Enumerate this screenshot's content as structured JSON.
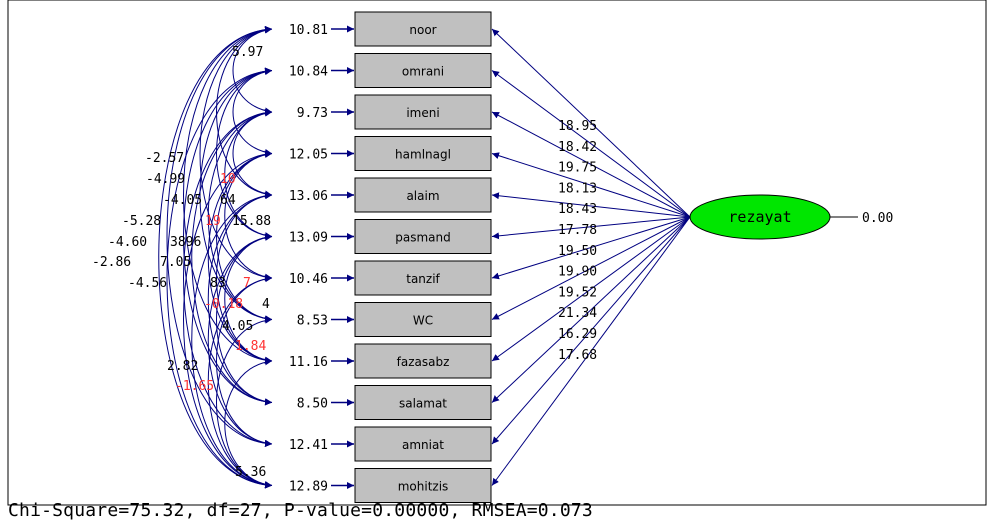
{
  "latent": {
    "name": "rezayat",
    "error_variance": "0.00",
    "fill": "#00e600"
  },
  "colors": {
    "arrow": "#000080",
    "negative_t": "#ff3333",
    "box_fill": "#c0c0c0"
  },
  "indicators": [
    {
      "name": "noor",
      "error": "10.81",
      "loading_t": "18.95"
    },
    {
      "name": "omrani",
      "error": "10.84",
      "loading_t": "18.42"
    },
    {
      "name": "imeni",
      "error": "9.73",
      "loading_t": "19.75"
    },
    {
      "name": "hamlnagl",
      "error": "12.05",
      "loading_t": "18.13"
    },
    {
      "name": "alaim",
      "error": "13.06",
      "loading_t": "18.43"
    },
    {
      "name": "pasmand",
      "error": "13.09",
      "loading_t": "17.78"
    },
    {
      "name": "tanzif",
      "error": "10.46",
      "loading_t": "19.50"
    },
    {
      "name": "WC",
      "error": "8.53",
      "loading_t": "19.90"
    },
    {
      "name": "fazasabz",
      "error": "11.16",
      "loading_t": "19.52"
    },
    {
      "name": "salamat",
      "error": "8.50",
      "loading_t": "21.34"
    },
    {
      "name": "amniat",
      "error": "12.41",
      "loading_t": "16.29"
    },
    {
      "name": "mohitzis",
      "error": "12.89",
      "loading_t": "17.68"
    }
  ],
  "covariance_labels": [
    {
      "text": "5.97",
      "negative": false
    },
    {
      "text": "-2.57",
      "negative": false
    },
    {
      "text": "-4.99",
      "negative": false
    },
    {
      "text": "10",
      "negative": true
    },
    {
      "text": "-4.05",
      "negative": false
    },
    {
      "text": "64",
      "negative": false
    },
    {
      "text": "-5.28",
      "negative": false
    },
    {
      "text": "19",
      "negative": true
    },
    {
      "text": "15.88",
      "negative": false
    },
    {
      "text": "-4.60",
      "negative": false
    },
    {
      "text": "3896",
      "negative": false
    },
    {
      "text": "-2.86",
      "negative": false
    },
    {
      "text": "7.05",
      "negative": false
    },
    {
      "text": "-4.56",
      "negative": false
    },
    {
      "text": "83",
      "negative": false
    },
    {
      "text": "7",
      "negative": true
    },
    {
      "text": "-0.18",
      "negative": true
    },
    {
      "text": "4",
      "negative": false
    },
    {
      "text": "4.05",
      "negative": false
    },
    {
      "text": "1.84",
      "negative": true
    },
    {
      "text": "2.82",
      "negative": false
    },
    {
      "text": "-1.65",
      "negative": true
    },
    {
      "text": "5.36",
      "negative": false
    }
  ],
  "fit_statistics": "Chi-Square=75.32, df=27, P-value=0.00000, RMSEA=0.073"
}
